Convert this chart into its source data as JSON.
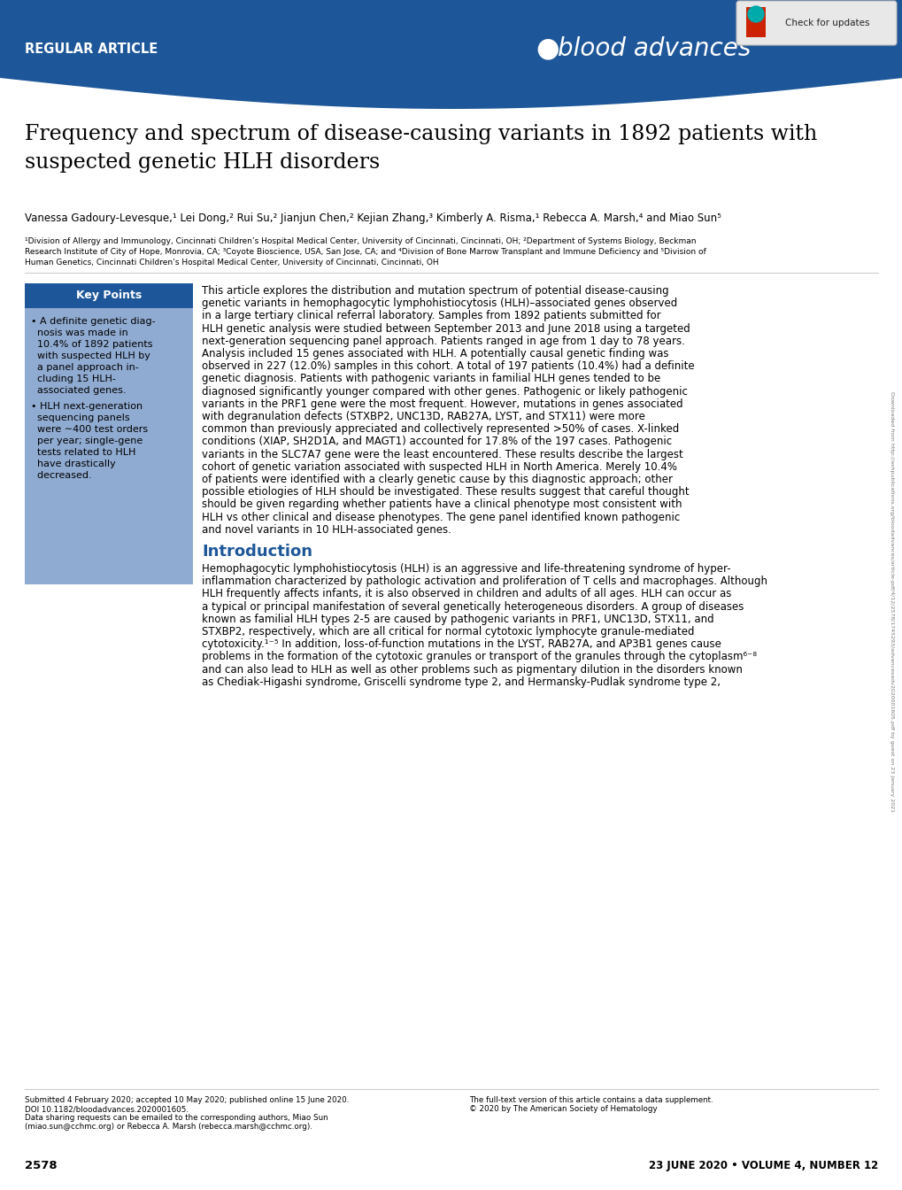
{
  "header_bg_color": "#1e5799",
  "header_text": "REGULAR ARTICLE",
  "title_line1": "Frequency and spectrum of disease-causing variants in 1892 patients with",
  "title_line2": "suspected genetic HLH disorders",
  "authors": "Vanessa Gadoury-Levesque,¹ Lei Dong,² Rui Su,² Jianjun Chen,² Kejian Zhang,³ Kimberly A. Risma,¹ Rebecca A. Marsh,⁴ and Miao Sun⁵",
  "affiliations_line1": "¹Division of Allergy and Immunology, Cincinnati Children’s Hospital Medical Center, University of Cincinnati, Cincinnati, OH; ²Department of Systems Biology, Beckman",
  "affiliations_line2": "Research Institute of City of Hope, Monrovia, CA; ³Coyote Bioscience, USA, San Jose, CA; and ⁴Division of Bone Marrow Transplant and Immune Deficiency and ⁵Division of",
  "affiliations_line3": "Human Genetics, Cincinnati Children’s Hospital Medical Center, University of Cincinnati, Cincinnati, OH",
  "key_points_title": "Key Points",
  "kp1_lines": [
    "• A definite genetic diag-",
    "  nosis was made in",
    "  10.4% of 1892 patients",
    "  with suspected HLH by",
    "  a panel approach in-",
    "  cluding 15 HLH-",
    "  associated genes."
  ],
  "kp2_lines": [
    "• HLH next-generation",
    "  sequencing panels",
    "  were ∼400 test orders",
    "  per year; single-gene",
    "  tests related to HLH",
    "  have drastically",
    "  decreased."
  ],
  "abstract_lines": [
    "This article explores the distribution and mutation spectrum of potential disease-causing",
    "genetic variants in hemophagocytic lymphohistiocytosis (HLH)–associated genes observed",
    "in a large tertiary clinical referral laboratory. Samples from 1892 patients submitted for",
    "HLH genetic analysis were studied between September 2013 and June 2018 using a targeted",
    "next-generation sequencing panel approach. Patients ranged in age from 1 day to 78 years.",
    "Analysis included 15 genes associated with HLH. A potentially causal genetic finding was",
    "observed in 227 (12.0%) samples in this cohort. A total of 197 patients (10.4%) had a definite",
    "genetic diagnosis. Patients with pathogenic variants in familial HLH genes tended to be",
    "diagnosed significantly younger compared with other genes. Pathogenic or likely pathogenic",
    "variants in the PRF1 gene were the most frequent. However, mutations in genes associated",
    "with degranulation defects (STXBP2, UNC13D, RAB27A, LYST, and STX11) were more",
    "common than previously appreciated and collectively represented >50% of cases. X-linked",
    "conditions (XIAP, SH2D1A, and MAGT1) accounted for 17.8% of the 197 cases. Pathogenic",
    "variants in the SLC7A7 gene were the least encountered. These results describe the largest",
    "cohort of genetic variation associated with suspected HLH in North America. Merely 10.4%",
    "of patients were identified with a clearly genetic cause by this diagnostic approach; other",
    "possible etiologies of HLH should be investigated. These results suggest that careful thought",
    "should be given regarding whether patients have a clinical phenotype most consistent with",
    "HLH vs other clinical and disease phenotypes. The gene panel identified known pathogenic",
    "and novel variants in 10 HLH-associated genes."
  ],
  "intro_title": "Introduction",
  "intro_lines": [
    "Hemophagocytic lymphohistiocytosis (HLH) is an aggressive and life-threatening syndrome of hyper-",
    "inflammation characterized by pathologic activation and proliferation of T cells and macrophages. Although",
    "HLH frequently affects infants, it is also observed in children and adults of all ages. HLH can occur as",
    "a typical or principal manifestation of several genetically heterogeneous disorders. A group of diseases",
    "known as familial HLH types 2-5 are caused by pathogenic variants in PRF1, UNC13D, STX11, and",
    "STXBP2, respectively, which are all critical for normal cytotoxic lymphocyte granule-mediated",
    "cytotoxicity.¹⁻⁵ In addition, loss-of-function mutations in the LYST, RAB27A, and AP3B1 genes cause",
    "problems in the formation of the cytotoxic granules or transport of the granules through the cytoplasm⁶⁻⁸",
    "and can also lead to HLH as well as other problems such as pigmentary dilution in the disorders known",
    "as Chediak-Higashi syndrome, Griscelli syndrome type 2, and Hermansky-Pudlak syndrome type 2,"
  ],
  "footer_left_lines": [
    "Submitted 4 February 2020; accepted 10 May 2020; published online 15 June 2020.",
    "DOI 10.1182/bloodadvances.2020001605.",
    "Data sharing requests can be emailed to the corresponding authors, Miao Sun",
    "(miao.sun@cchmc.org) or Rebecca A. Marsh (rebecca.marsh@cchmc.org)."
  ],
  "footer_mid_lines": [
    "The full-text version of this article contains a data supplement.",
    "© 2020 by The American Society of Hematology"
  ],
  "footer_page_left": "2578",
  "footer_date_right": "23 JUNE 2020 • VOLUME 4, NUMBER 12",
  "sidebar_text": "Downloaded from http://ashpublications.org/bloodadvances/article-pdf/4/12/2578/1745293/advancesadv2020001605.pdf by guest on 23 January 2021",
  "key_points_bg": "#6b8fc2",
  "key_points_header_bg": "#1e5799",
  "intro_color": "#1e5799"
}
